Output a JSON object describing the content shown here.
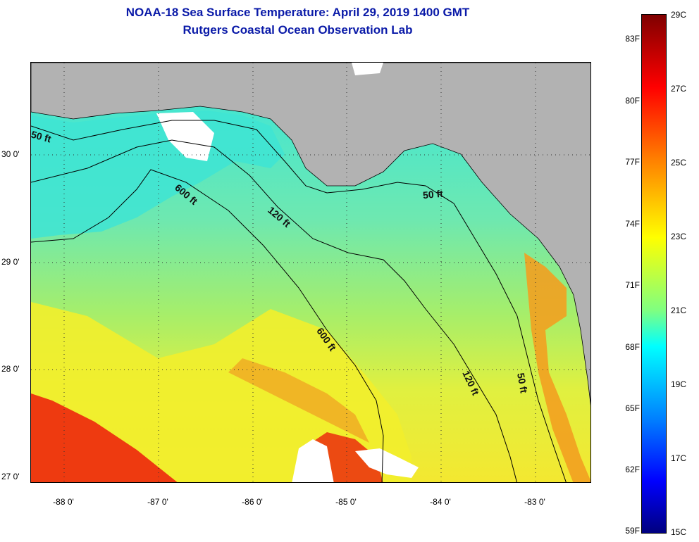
{
  "titles": {
    "line1": "NOAA-18 Sea Surface Temperature:  April 29, 2019 1400 GMT",
    "line2": "Rutgers Coastal Ocean Observation Lab"
  },
  "map": {
    "lat_labels": [
      "30 0'",
      "29 0'",
      "28 0'",
      "27 0'"
    ],
    "lon_labels": [
      "-88 0'",
      "-87 0'",
      "-86 0'",
      "-85 0'",
      "-84 0'",
      "-83 0'"
    ],
    "contours": [
      "50 ft",
      "600 ft",
      "120 ft",
      "50 ft",
      "600 ft",
      "120 ft",
      "50 ft"
    ],
    "colors": {
      "land": "#b2b2b2",
      "cloud": "#ffffff",
      "cool_water": "#40e0c8",
      "mid_water": "#a8f060",
      "warm_water": "#f0f030",
      "hot_water": "#f04010"
    }
  },
  "colorbar": {
    "fahrenheit_labels": [
      "83F",
      "80F",
      "77F",
      "74F",
      "71F",
      "68F",
      "65F",
      "62F",
      "59F"
    ],
    "celsius_labels": [
      "29C",
      "27C",
      "25C",
      "23C",
      "21C",
      "19C",
      "17C",
      "15C"
    ],
    "range_c": [
      15,
      29
    ],
    "gradient": [
      "#00007f",
      "#0000ff",
      "#0080ff",
      "#00ffff",
      "#80ff80",
      "#ffff00",
      "#ff8000",
      "#ff0000",
      "#7f0000"
    ]
  }
}
